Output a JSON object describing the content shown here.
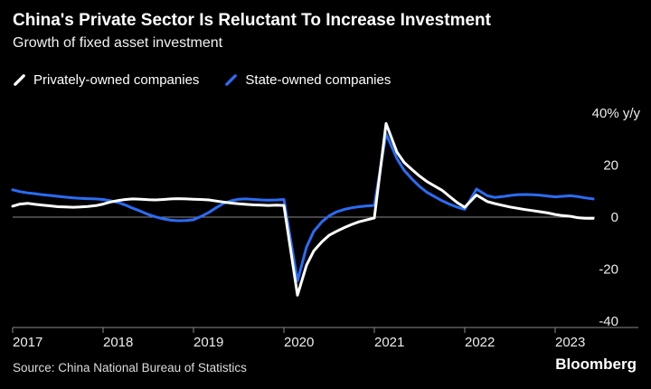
{
  "header": {
    "title": "China's Private Sector Is Reluctant To Increase Investment",
    "subtitle": "Growth of fixed asset investment"
  },
  "legend": [
    {
      "label": "Privately-owned companies",
      "color": "#ffffff"
    },
    {
      "label": "State-owned companies",
      "color": "#2a6cf4"
    }
  ],
  "chart_data": {
    "type": "line",
    "title": "Growth of fixed asset investment",
    "ylabel": "% y/y",
    "x_range": [
      2017,
      2023.45
    ],
    "y_range": [
      -45,
      42
    ],
    "grid": "zero-line-only",
    "legend_position": "top-left",
    "y_ticks": [
      {
        "value": 40,
        "label": "40% y/y"
      },
      {
        "value": 20,
        "label": "20"
      },
      {
        "value": 0,
        "label": "0"
      },
      {
        "value": -20,
        "label": "-20"
      },
      {
        "value": -40,
        "label": "-40"
      }
    ],
    "x_ticks": [
      {
        "value": 2017,
        "label": "2017"
      },
      {
        "value": 2018,
        "label": "2018"
      },
      {
        "value": 2019,
        "label": "2019"
      },
      {
        "value": 2020,
        "label": "2020"
      },
      {
        "value": 2021,
        "label": "2021"
      },
      {
        "value": 2022,
        "label": "2022"
      },
      {
        "value": 2023,
        "label": "2023"
      }
    ],
    "series": [
      {
        "name": "Privately-owned companies",
        "color": "#ffffff",
        "points": [
          [
            2017.0,
            4.2
          ],
          [
            2017.08,
            5.0
          ],
          [
            2017.17,
            5.3
          ],
          [
            2017.25,
            4.9
          ],
          [
            2017.33,
            4.6
          ],
          [
            2017.42,
            4.3
          ],
          [
            2017.5,
            4.0
          ],
          [
            2017.58,
            3.9
          ],
          [
            2017.67,
            3.8
          ],
          [
            2017.75,
            3.9
          ],
          [
            2017.83,
            4.1
          ],
          [
            2017.92,
            4.4
          ],
          [
            2018.0,
            5.0
          ],
          [
            2018.08,
            5.8
          ],
          [
            2018.17,
            6.4
          ],
          [
            2018.25,
            6.8
          ],
          [
            2018.33,
            7.0
          ],
          [
            2018.42,
            6.9
          ],
          [
            2018.5,
            6.7
          ],
          [
            2018.58,
            6.6
          ],
          [
            2018.67,
            6.8
          ],
          [
            2018.75,
            7.0
          ],
          [
            2018.83,
            7.1
          ],
          [
            2018.92,
            7.0
          ],
          [
            2019.0,
            6.9
          ],
          [
            2019.08,
            6.8
          ],
          [
            2019.17,
            6.6
          ],
          [
            2019.25,
            6.2
          ],
          [
            2019.33,
            5.8
          ],
          [
            2019.42,
            5.4
          ],
          [
            2019.5,
            5.1
          ],
          [
            2019.58,
            4.9
          ],
          [
            2019.67,
            4.7
          ],
          [
            2019.75,
            4.6
          ],
          [
            2019.83,
            4.5
          ],
          [
            2019.92,
            4.6
          ],
          [
            2020.0,
            4.5
          ],
          [
            2020.15,
            -30.0
          ],
          [
            2020.25,
            -18.5
          ],
          [
            2020.33,
            -13.0
          ],
          [
            2020.42,
            -9.5
          ],
          [
            2020.5,
            -7.0
          ],
          [
            2020.58,
            -5.5
          ],
          [
            2020.67,
            -4.0
          ],
          [
            2020.75,
            -2.8
          ],
          [
            2020.83,
            -1.8
          ],
          [
            2020.92,
            -1.0
          ],
          [
            2021.0,
            -0.3
          ],
          [
            2021.13,
            36.0
          ],
          [
            2021.25,
            25.0
          ],
          [
            2021.33,
            21.0
          ],
          [
            2021.42,
            18.2
          ],
          [
            2021.5,
            15.8
          ],
          [
            2021.58,
            13.7
          ],
          [
            2021.67,
            11.9
          ],
          [
            2021.75,
            10.3
          ],
          [
            2021.83,
            8.0
          ],
          [
            2021.92,
            5.5
          ],
          [
            2022.0,
            3.8
          ],
          [
            2022.13,
            8.5
          ],
          [
            2022.25,
            6.0
          ],
          [
            2022.33,
            5.2
          ],
          [
            2022.42,
            4.5
          ],
          [
            2022.5,
            3.9
          ],
          [
            2022.58,
            3.4
          ],
          [
            2022.67,
            2.9
          ],
          [
            2022.75,
            2.5
          ],
          [
            2022.83,
            2.1
          ],
          [
            2022.92,
            1.6
          ],
          [
            2023.0,
            1.0
          ],
          [
            2023.08,
            0.6
          ],
          [
            2023.17,
            0.3
          ],
          [
            2023.25,
            -0.2
          ],
          [
            2023.33,
            -0.4
          ],
          [
            2023.42,
            -0.5
          ]
        ]
      },
      {
        "name": "State-owned companies",
        "color": "#2a6cf4",
        "points": [
          [
            2017.0,
            10.5
          ],
          [
            2017.08,
            9.8
          ],
          [
            2017.17,
            9.3
          ],
          [
            2017.25,
            9.0
          ],
          [
            2017.33,
            8.6
          ],
          [
            2017.42,
            8.3
          ],
          [
            2017.5,
            8.0
          ],
          [
            2017.58,
            7.7
          ],
          [
            2017.67,
            7.4
          ],
          [
            2017.75,
            7.2
          ],
          [
            2017.83,
            7.1
          ],
          [
            2017.92,
            7.0
          ],
          [
            2018.0,
            6.8
          ],
          [
            2018.08,
            6.3
          ],
          [
            2018.17,
            5.6
          ],
          [
            2018.25,
            4.6
          ],
          [
            2018.33,
            3.4
          ],
          [
            2018.42,
            2.2
          ],
          [
            2018.5,
            1.0
          ],
          [
            2018.58,
            0.1
          ],
          [
            2018.67,
            -0.7
          ],
          [
            2018.75,
            -1.2
          ],
          [
            2018.83,
            -1.4
          ],
          [
            2018.92,
            -1.3
          ],
          [
            2019.0,
            -1.0
          ],
          [
            2019.08,
            0.2
          ],
          [
            2019.17,
            1.8
          ],
          [
            2019.25,
            3.6
          ],
          [
            2019.33,
            5.2
          ],
          [
            2019.42,
            6.3
          ],
          [
            2019.5,
            6.9
          ],
          [
            2019.58,
            7.0
          ],
          [
            2019.67,
            6.8
          ],
          [
            2019.75,
            6.6
          ],
          [
            2019.83,
            6.5
          ],
          [
            2019.92,
            6.6
          ],
          [
            2020.0,
            6.8
          ],
          [
            2020.15,
            -24.5
          ],
          [
            2020.25,
            -11.5
          ],
          [
            2020.33,
            -5.5
          ],
          [
            2020.42,
            -1.8
          ],
          [
            2020.5,
            0.5
          ],
          [
            2020.58,
            2.0
          ],
          [
            2020.67,
            3.0
          ],
          [
            2020.75,
            3.6
          ],
          [
            2020.83,
            4.0
          ],
          [
            2020.92,
            4.3
          ],
          [
            2021.0,
            4.5
          ],
          [
            2021.13,
            32.0
          ],
          [
            2021.25,
            22.5
          ],
          [
            2021.33,
            18.0
          ],
          [
            2021.42,
            14.5
          ],
          [
            2021.5,
            11.8
          ],
          [
            2021.58,
            9.6
          ],
          [
            2021.67,
            7.8
          ],
          [
            2021.75,
            6.3
          ],
          [
            2021.83,
            5.0
          ],
          [
            2021.92,
            3.8
          ],
          [
            2022.0,
            3.0
          ],
          [
            2022.13,
            10.8
          ],
          [
            2022.25,
            8.2
          ],
          [
            2022.33,
            7.6
          ],
          [
            2022.42,
            7.9
          ],
          [
            2022.5,
            8.3
          ],
          [
            2022.58,
            8.6
          ],
          [
            2022.67,
            8.7
          ],
          [
            2022.75,
            8.6
          ],
          [
            2022.83,
            8.4
          ],
          [
            2022.92,
            8.1
          ],
          [
            2023.0,
            7.8
          ],
          [
            2023.08,
            8.0
          ],
          [
            2023.17,
            8.2
          ],
          [
            2023.25,
            7.9
          ],
          [
            2023.33,
            7.4
          ],
          [
            2023.42,
            7.0
          ]
        ]
      }
    ]
  },
  "footer": {
    "source": "Source: China National Bureau of Statistics",
    "brand": "Bloomberg"
  }
}
